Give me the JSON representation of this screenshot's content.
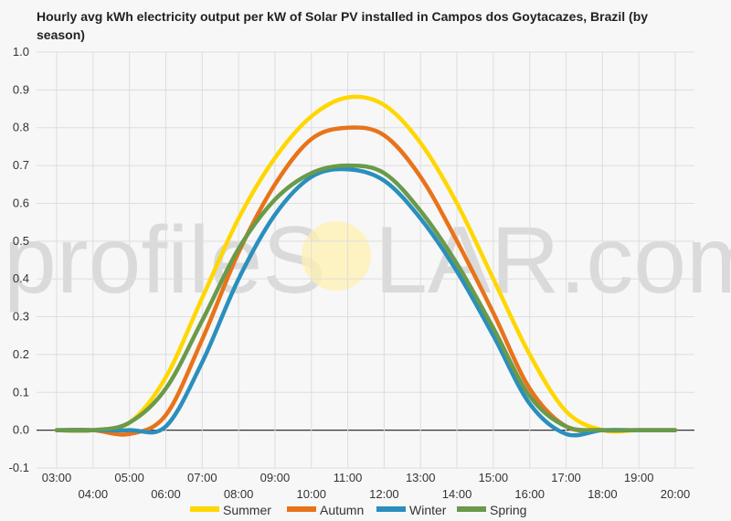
{
  "watermark": {
    "left": "profileS",
    "right": "LAR.com"
  },
  "chart_data": {
    "type": "line",
    "title_line1": "Hourly avg kWh electricity output per kW of Solar PV installed in Campos dos Goytacazes, Brazil (by",
    "title_line2": "season)",
    "x": [
      "03:00",
      "04:00",
      "05:00",
      "06:00",
      "07:00",
      "08:00",
      "09:00",
      "10:00",
      "11:00",
      "12:00",
      "13:00",
      "14:00",
      "15:00",
      "16:00",
      "17:00",
      "18:00",
      "19:00",
      "20:00"
    ],
    "ylim": [
      -0.1,
      1.0
    ],
    "yticks": [
      "1.0",
      "0.9",
      "0.8",
      "0.7",
      "0.6",
      "0.5",
      "0.4",
      "0.3",
      "0.2",
      "0.1",
      "0.0",
      "-0.1"
    ],
    "grid": true,
    "legend": "bottom",
    "series": [
      {
        "name": "Summer",
        "color": "#ffd700",
        "values": [
          0,
          0,
          0.02,
          0.14,
          0.35,
          0.56,
          0.72,
          0.83,
          0.88,
          0.86,
          0.76,
          0.6,
          0.4,
          0.2,
          0.05,
          0,
          0,
          0
        ]
      },
      {
        "name": "Autumn",
        "color": "#e8731a",
        "values": [
          0,
          0,
          -0.01,
          0.04,
          0.24,
          0.47,
          0.65,
          0.77,
          0.8,
          0.78,
          0.67,
          0.5,
          0.31,
          0.11,
          0.01,
          0,
          0,
          0
        ]
      },
      {
        "name": "Winter",
        "color": "#2a8fbd",
        "values": [
          0,
          0,
          0,
          0.01,
          0.18,
          0.4,
          0.57,
          0.67,
          0.69,
          0.66,
          0.56,
          0.42,
          0.25,
          0.07,
          -0.01,
          0,
          0,
          0
        ]
      },
      {
        "name": "Spring",
        "color": "#6a9a4a",
        "values": [
          0,
          0,
          0.02,
          0.11,
          0.29,
          0.48,
          0.61,
          0.68,
          0.7,
          0.68,
          0.58,
          0.44,
          0.27,
          0.09,
          0.01,
          0,
          0,
          0
        ]
      }
    ]
  }
}
